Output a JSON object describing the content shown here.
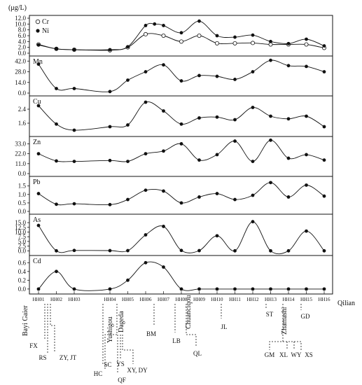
{
  "unit": "(μg/L)",
  "chart_data": {
    "type": "line",
    "stations": [
      "HH01",
      "HH02",
      "HH03",
      "HH04",
      "HH05",
      "HH06",
      "HH07",
      "HH08",
      "HH09",
      "HH10",
      "HH11",
      "HH12",
      "HH13",
      "HH14",
      "HH15",
      "HH16"
    ],
    "station_x": [
      1,
      2,
      3,
      5,
      6,
      7,
      8,
      9,
      10,
      11,
      12,
      13,
      14,
      15,
      16,
      17
    ],
    "end_label": "Qilian",
    "panels": [
      {
        "id": "cr-ni",
        "label": "",
        "ylim": [
          0,
          12
        ],
        "ticks": [
          "0.0",
          "2.0",
          "4.0",
          "6.0",
          "8.0",
          "10.0",
          "12.0"
        ],
        "legend": [
          "Cr",
          "Ni"
        ],
        "series": [
          {
            "name": "Cr",
            "marker": "open",
            "x": [
              1,
              2,
              3,
              5,
              6,
              7,
              8,
              9,
              10,
              11,
              12,
              13,
              14,
              15,
              16,
              17
            ],
            "y": [
              3.0,
              1.5,
              1.2,
              1.0,
              2.0,
              6.5,
              6.0,
              4.0,
              6.0,
              3.4,
              3.4,
              3.5,
              3.0,
              3.0,
              3.0,
              1.8
            ]
          },
          {
            "name": "Ni",
            "marker": "filled",
            "x": [
              1,
              2,
              3,
              5,
              6,
              7,
              7.5,
              8,
              9,
              10,
              11,
              12,
              13,
              14,
              15,
              16,
              17
            ],
            "y": [
              2.8,
              1.5,
              1.2,
              1.2,
              2.2,
              9.5,
              10.0,
              9.5,
              7.0,
              11.0,
              6.0,
              5.5,
              6.2,
              4.0,
              3.3,
              4.8,
              2.5
            ]
          }
        ]
      },
      {
        "id": "mn",
        "label": "Mn",
        "ylim": [
          0,
          45
        ],
        "ticks": [
          "0.0",
          "14.0",
          "28.0",
          "42.0"
        ],
        "series": [
          {
            "name": "Mn",
            "marker": "filled",
            "x": [
              1,
              2,
              3,
              5,
              6,
              7,
              8,
              9,
              10,
              11,
              12,
              13,
              14,
              15,
              16,
              17
            ],
            "y": [
              38,
              6,
              6,
              2,
              17,
              28,
              37,
              16,
              23,
              22,
              18,
              28,
              43,
              36,
              35,
              28
            ]
          }
        ]
      },
      {
        "id": "cu",
        "label": "Cu",
        "ylim": [
          1.0,
          3.0
        ],
        "ticks": [
          "1.6",
          "2.4"
        ],
        "series": [
          {
            "name": "Cu",
            "marker": "filled",
            "x": [
              1,
              2,
              3,
              5,
              6,
              7,
              8,
              9,
              10,
              11,
              12,
              13,
              14,
              15,
              16,
              17
            ],
            "y": [
              2.6,
              1.55,
              1.2,
              1.4,
              1.5,
              2.8,
              2.3,
              1.55,
              1.9,
              1.95,
              1.8,
              2.5,
              2.0,
              1.85,
              2.0,
              1.4
            ]
          }
        ]
      },
      {
        "id": "zn",
        "label": "Zn",
        "ylim": [
          0,
          38
        ],
        "ticks": [
          "0.0",
          "11.0",
          "22.0",
          "33.0"
        ],
        "series": [
          {
            "name": "Zn",
            "marker": "filled",
            "x": [
              1,
              2,
              3,
              5,
              6,
              7,
              8,
              9,
              10,
              11,
              12,
              13,
              14,
              15,
              16,
              17
            ],
            "y": [
              22,
              14,
              13.5,
              14.5,
              13.5,
              22,
              25,
              33,
              15,
              21,
              36,
              13.5,
              37,
              17,
              21,
              15
            ]
          }
        ]
      },
      {
        "id": "pb",
        "label": "Pb",
        "ylim": [
          0,
          1.9
        ],
        "ticks": [
          "0.0",
          "0.5",
          "1.0",
          "1.5"
        ],
        "series": [
          {
            "name": "Pb",
            "marker": "filled",
            "x": [
              1,
              2,
              3,
              5,
              6,
              7,
              8,
              9,
              10,
              11,
              12,
              13,
              14,
              15,
              16,
              17
            ],
            "y": [
              1.05,
              0.42,
              0.45,
              0.4,
              0.7,
              1.25,
              1.2,
              0.5,
              0.85,
              1.05,
              0.7,
              0.95,
              1.7,
              0.85,
              1.55,
              0.9
            ]
          }
        ]
      },
      {
        "id": "as",
        "label": "As",
        "ylim": [
          -1,
          18
        ],
        "ticks": [
          "0.0",
          "2.5",
          "5.0",
          "7.5",
          "10.0",
          "12.5",
          "15.0"
        ],
        "series": [
          {
            "name": "As",
            "marker": "filled",
            "x": [
              1,
              2,
              3,
              5,
              6,
              7,
              8,
              9,
              10,
              11,
              12,
              13,
              14,
              15,
              16,
              17
            ],
            "y": [
              13.5,
              0,
              0.2,
              0.1,
              0.1,
              8.5,
              13.0,
              0.2,
              0.1,
              8,
              0,
              15.5,
              0,
              0,
              10.5,
              0
            ]
          }
        ]
      },
      {
        "id": "cd",
        "label": "Cd",
        "ylim": [
          -0.05,
          0.7
        ],
        "ticks": [
          "0.0",
          "0.2",
          "0.4",
          "0.6"
        ],
        "series": [
          {
            "name": "Cd",
            "marker": "filled",
            "x": [
              1,
              2,
              3,
              5,
              6,
              7,
              8,
              9,
              10,
              11,
              12,
              13,
              14,
              15,
              16,
              17
            ],
            "y": [
              0,
              0.4,
              0,
              0,
              0.2,
              0.6,
              0.5,
              0,
              0,
              0,
              0,
              0,
              0,
              0,
              0,
              0
            ]
          }
        ]
      }
    ],
    "place_labels": [
      {
        "text": "Bayi Gaier",
        "vertical": true
      },
      {
        "text": "FX"
      },
      {
        "text": "RS"
      },
      {
        "text": "ZY, JT"
      },
      {
        "text": "Yushigou",
        "vertical": true
      },
      {
        "text": "Dageda",
        "vertical": true
      },
      {
        "text": "SC"
      },
      {
        "text": "HC"
      },
      {
        "text": "YS"
      },
      {
        "text": "QF"
      },
      {
        "text": "XY, DY"
      },
      {
        "text": "BM"
      },
      {
        "text": "LB"
      },
      {
        "text": "Chuanciqou",
        "vertical": true
      },
      {
        "text": "QL"
      },
      {
        "text": "JL"
      },
      {
        "text": "ST"
      },
      {
        "text": "Zhamashi",
        "vertical": true
      },
      {
        "text": "GD"
      },
      {
        "text": "GM"
      },
      {
        "text": "XL"
      },
      {
        "text": "WY"
      },
      {
        "text": "XS"
      }
    ]
  }
}
